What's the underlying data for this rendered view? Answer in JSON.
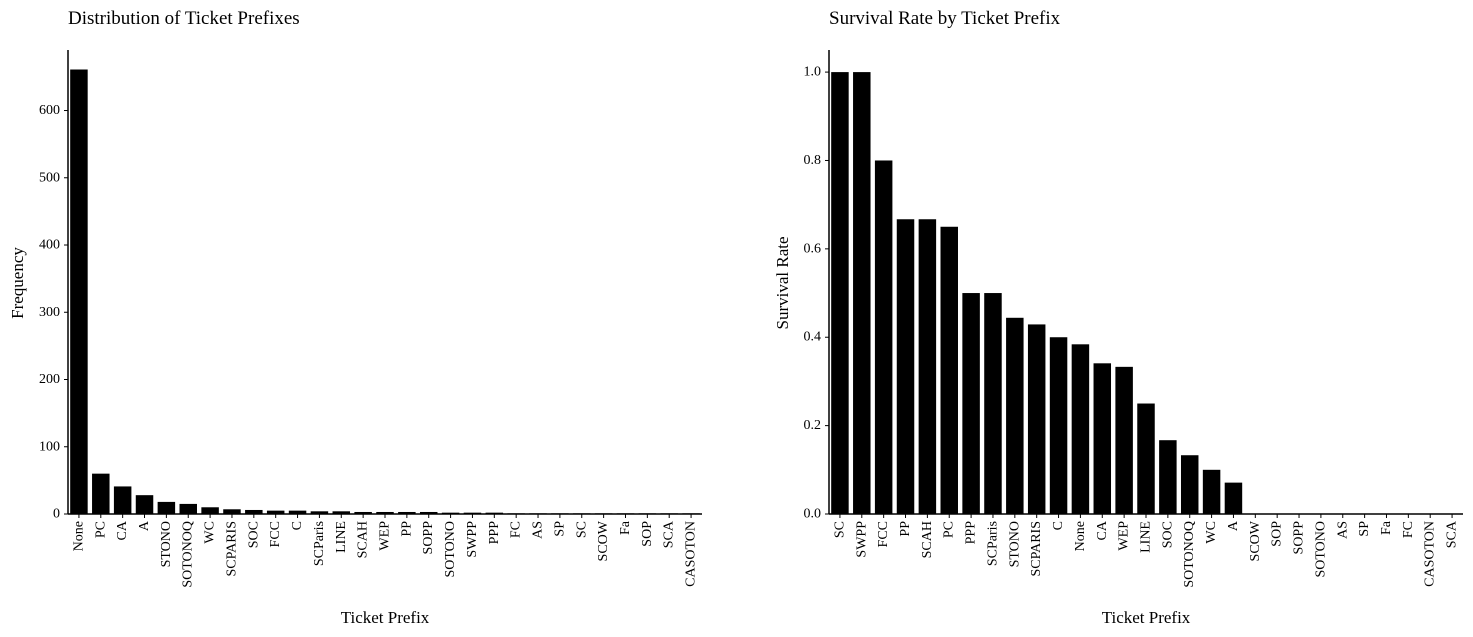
{
  "chart_data": [
    {
      "type": "bar",
      "title": "Distribution of Ticket Prefixes",
      "xlabel": "Ticket Prefix",
      "ylabel": "Frequency",
      "ylim": [
        0,
        690
      ],
      "yticks": [
        0,
        100,
        200,
        300,
        400,
        500,
        600
      ],
      "grid": false,
      "legend": "none",
      "bar_color": "#000000",
      "categories": [
        "None",
        "PC",
        "CA",
        "A",
        "STONO",
        "SOTONOQ",
        "WC",
        "SCPARIS",
        "SOC",
        "FCC",
        "C",
        "SCParis",
        "LINE",
        "SCAH",
        "WEP",
        "PP",
        "SOPP",
        "SOTONO",
        "SWPP",
        "PPP",
        "FC",
        "AS",
        "SP",
        "SC",
        "SCOW",
        "Fa",
        "SOP",
        "SCA",
        "CASOTON"
      ],
      "values": [
        661,
        60,
        41,
        28,
        18,
        15,
        10,
        7,
        6,
        5,
        5,
        4,
        4,
        3,
        3,
        3,
        3,
        2,
        2,
        2,
        1,
        1,
        1,
        1,
        1,
        1,
        1,
        1,
        1
      ]
    },
    {
      "type": "bar",
      "title": "Survival Rate by Ticket Prefix",
      "xlabel": "Ticket Prefix",
      "ylabel": "Survival Rate",
      "ylim": [
        0,
        1.05
      ],
      "yticks": [
        "0.0",
        "0.2",
        "0.4",
        "0.6",
        "0.8",
        "1.0"
      ],
      "grid": false,
      "legend": "none",
      "bar_color": "#000000",
      "categories": [
        "SC",
        "SWPP",
        "FCC",
        "PP",
        "SCAH",
        "PC",
        "PPP",
        "SCParis",
        "STONO",
        "SCPARIS",
        "C",
        "None",
        "CA",
        "WEP",
        "LINE",
        "SOC",
        "SOTONOQ",
        "WC",
        "A",
        "SCOW",
        "SOP",
        "SOPP",
        "SOTONO",
        "AS",
        "SP",
        "Fa",
        "FC",
        "CASOTON",
        "SCA"
      ],
      "values": [
        1.0,
        1.0,
        0.8,
        0.667,
        0.667,
        0.65,
        0.5,
        0.5,
        0.444,
        0.429,
        0.4,
        0.384,
        0.341,
        0.333,
        0.25,
        0.167,
        0.133,
        0.1,
        0.071,
        0,
        0,
        0,
        0,
        0,
        0,
        0,
        0,
        0,
        0
      ]
    }
  ]
}
